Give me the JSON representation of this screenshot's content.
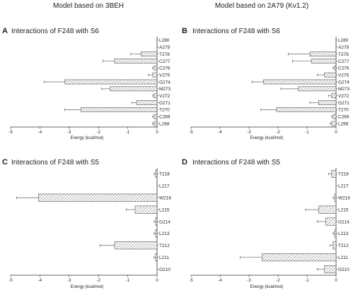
{
  "column_titles": [
    "Model based on 3BEH",
    "Model based on 2A79 (Kv1.2)"
  ],
  "colors": {
    "bar_fill": "#ffffff",
    "bar_hatch": "#6a6a6a",
    "axis": "#333333",
    "error_bar": "#666666"
  },
  "chart_data": [
    {
      "type": "bar",
      "orientation": "horizontal",
      "panel": "A",
      "title": "Interactions of F248 with S6",
      "xlabel": "Energy (kcal/mol)",
      "xlim": [
        -5,
        0
      ],
      "xticks": [
        "-5",
        "-4",
        "-3",
        "-2",
        "-1",
        "0"
      ],
      "categories": [
        "L280",
        "A279",
        "T278",
        "C277",
        "C276",
        "V275",
        "G274",
        "M273",
        "V272",
        "G271",
        "T270",
        "C269",
        "L268"
      ],
      "values": [
        0,
        0,
        -0.55,
        -1.45,
        -0.1,
        -0.15,
        -3.15,
        -1.6,
        -0.1,
        -0.7,
        -2.6,
        -0.1,
        -0.1
      ],
      "errors": [
        0,
        0,
        0.35,
        0.4,
        0.05,
        0.15,
        0.7,
        0.3,
        0.05,
        0.15,
        0.55,
        0.05,
        0.05
      ]
    },
    {
      "type": "bar",
      "orientation": "horizontal",
      "panel": "B",
      "title": "Interactions of F248 with S6",
      "xlabel": "Energy (kcal/mol)",
      "xlim": [
        -5,
        0
      ],
      "xticks": [
        "-5",
        "-4",
        "-3",
        "-2",
        "-1",
        "0"
      ],
      "categories": [
        "L280",
        "A279",
        "T278",
        "C277",
        "C276",
        "V275",
        "G274",
        "M273",
        "V272",
        "G271",
        "T270",
        "C269",
        "L268"
      ],
      "values": [
        0,
        0,
        -0.9,
        -0.85,
        -0.05,
        -0.4,
        -2.5,
        -1.3,
        -0.15,
        -0.6,
        -2.05,
        -0.1,
        -0.15
      ],
      "errors": [
        0,
        0,
        0.75,
        0.65,
        0.05,
        0.25,
        0.4,
        0.6,
        0.1,
        0.3,
        0.55,
        0.05,
        0.05
      ]
    },
    {
      "type": "bar",
      "orientation": "horizontal",
      "panel": "C",
      "title": "Interactions of F248 with S5",
      "xlabel": "Energy (kcal/mol)",
      "xlim": [
        -5,
        0
      ],
      "xticks": [
        "-5",
        "-4",
        "-3",
        "-2",
        "-1",
        "0"
      ],
      "categories": [
        "T218",
        "L217",
        "W216",
        "L215",
        "G214",
        "L213",
        "T212",
        "L211",
        "G210"
      ],
      "values": [
        -0.05,
        0,
        -4.05,
        -0.75,
        -0.05,
        -0.05,
        -1.45,
        -0.05,
        0
      ],
      "errors": [
        0.05,
        0,
        0.75,
        0.3,
        0.05,
        0.05,
        0.5,
        0.05,
        0
      ]
    },
    {
      "type": "bar",
      "orientation": "horizontal",
      "panel": "D",
      "title": "Interactions of F248 with S5",
      "xlabel": "Energy (kcal/mol)",
      "xlim": [
        -5,
        0
      ],
      "xticks": [
        "-5",
        "-4",
        "-3",
        "-2",
        "-1",
        "0"
      ],
      "categories": [
        "T218",
        "L217",
        "W216",
        "L215",
        "G214",
        "L213",
        "T212",
        "L211",
        "G210"
      ],
      "values": [
        -0.15,
        0,
        -0.05,
        -0.6,
        -0.35,
        -0.05,
        -0.1,
        -2.55,
        -0.4
      ],
      "errors": [
        0.1,
        0,
        0.05,
        0.45,
        0.3,
        0.05,
        0.1,
        0.75,
        0.25
      ]
    }
  ]
}
